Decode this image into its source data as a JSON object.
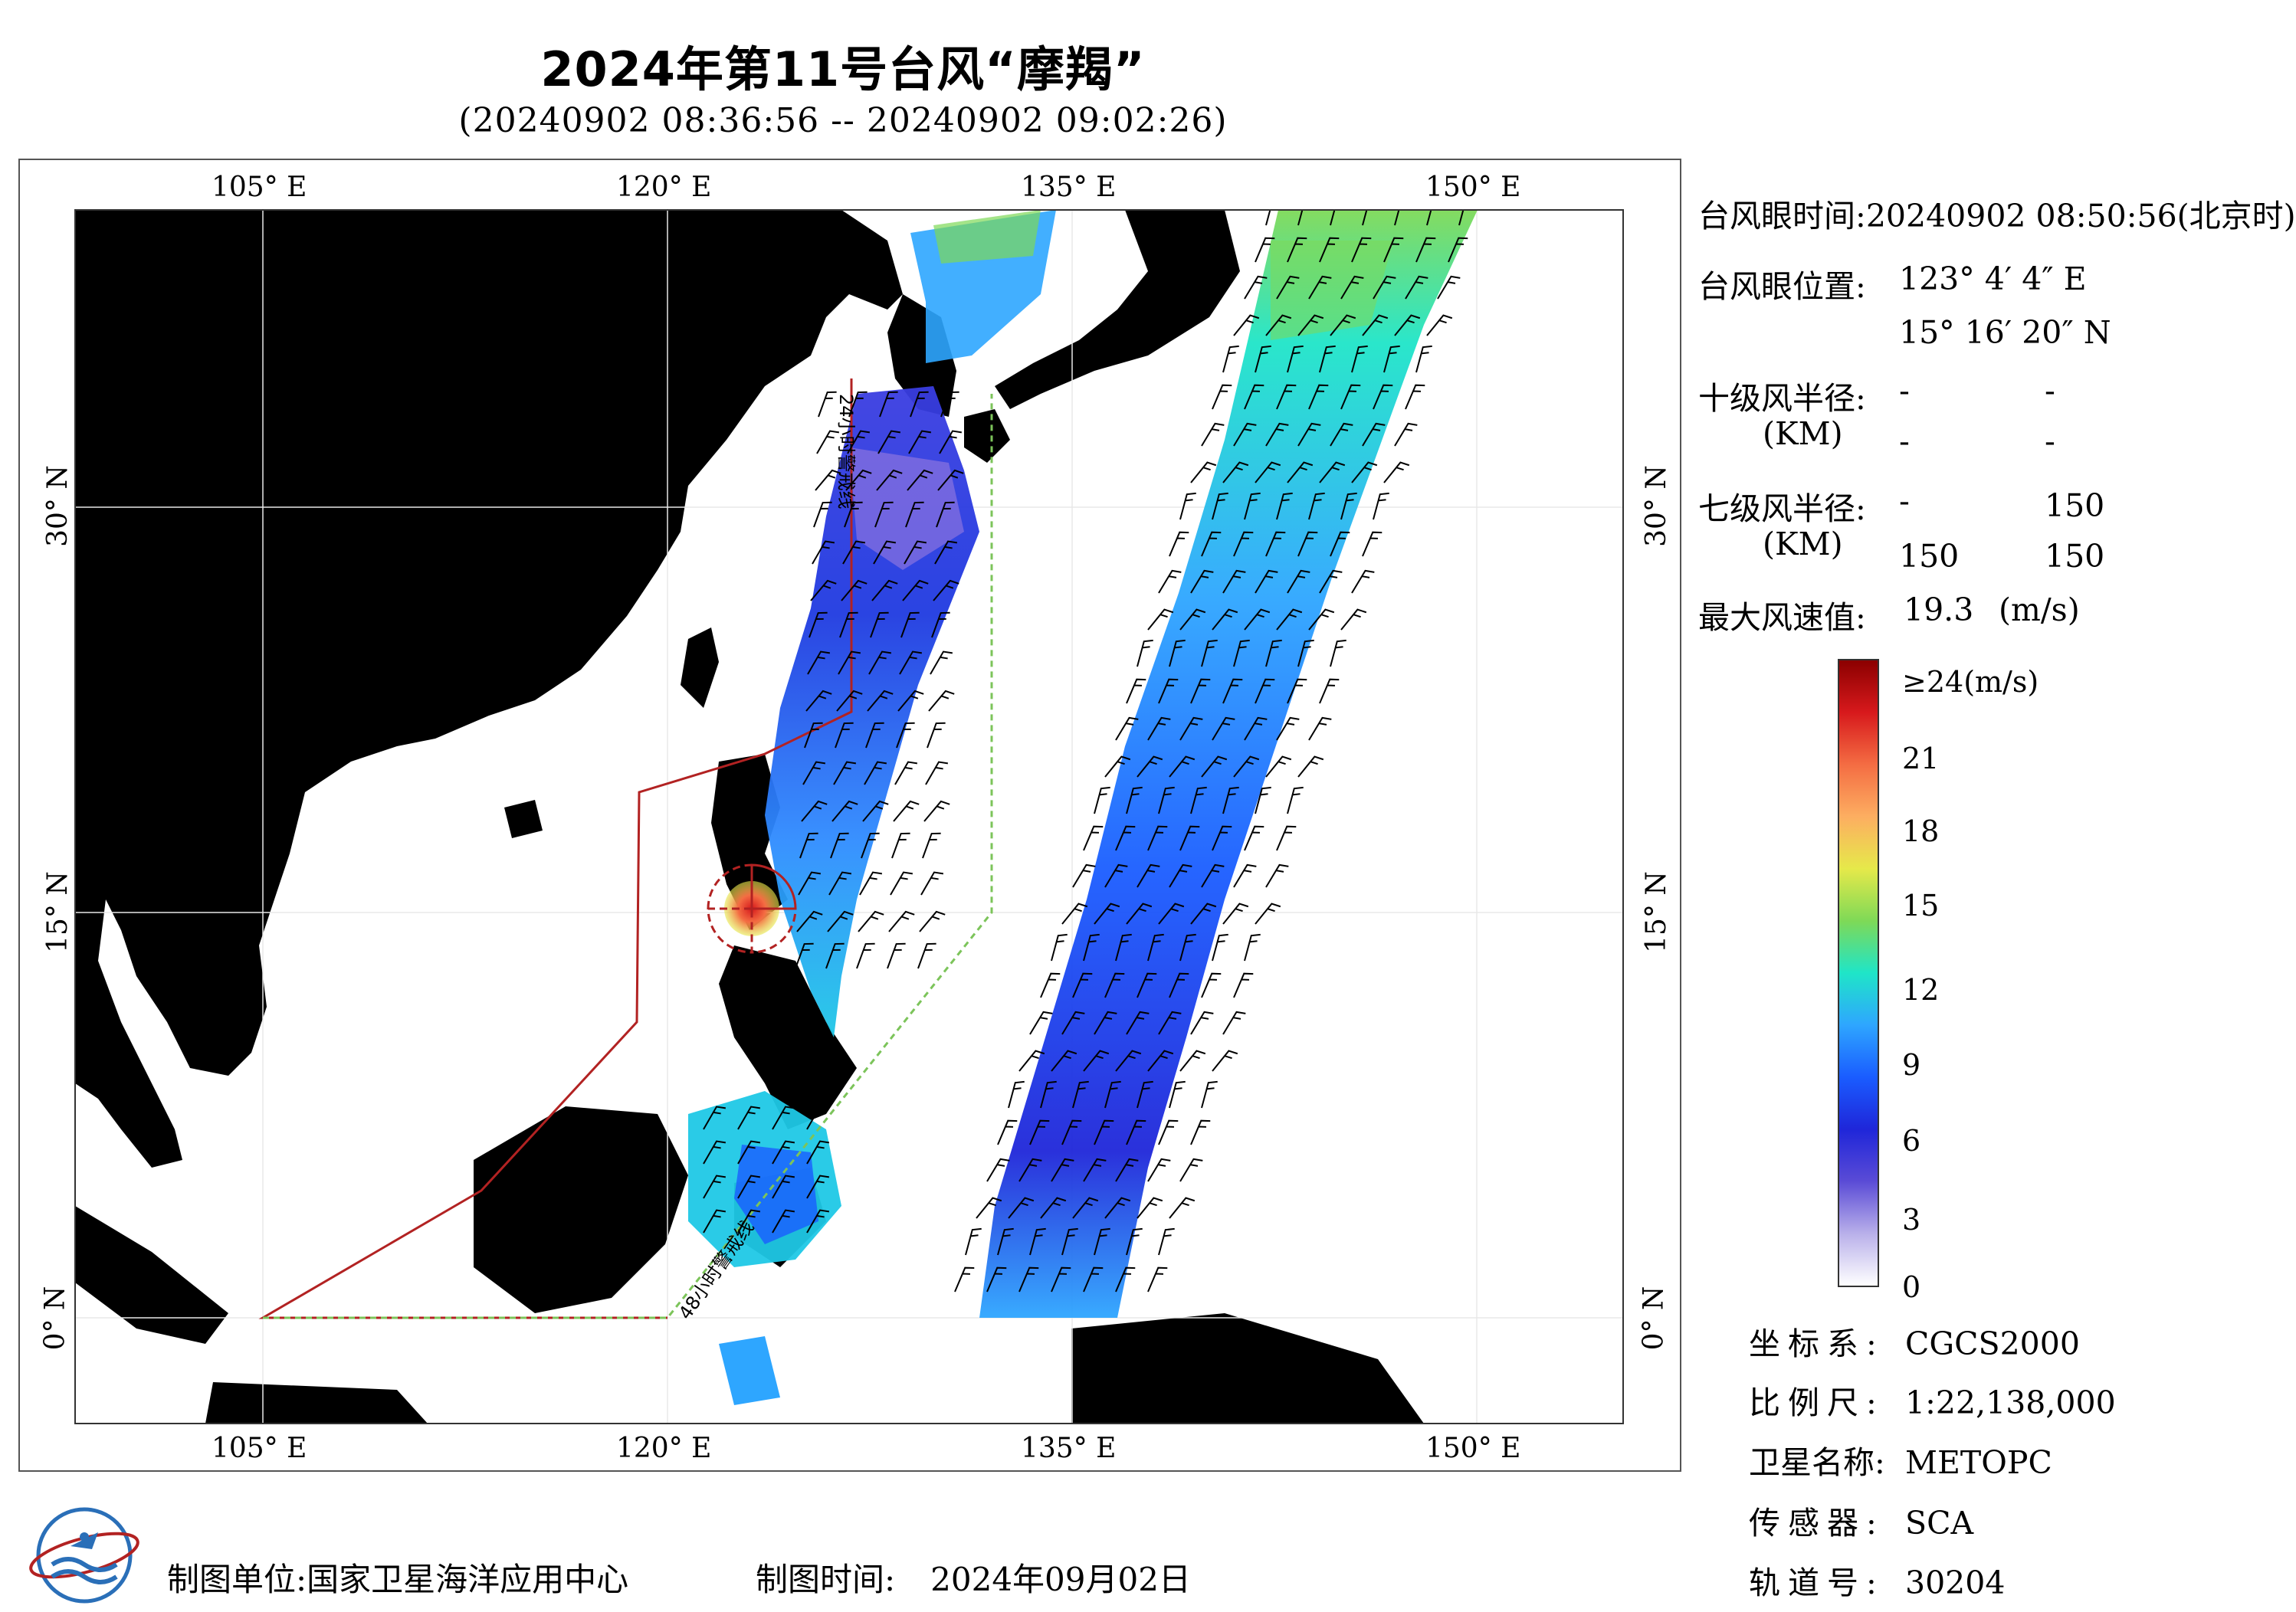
{
  "header": {
    "title": "2024年第11号台风“摩羯”",
    "subtitle": "(20240902 08:36:56 -- 20240902 09:02:26)"
  },
  "map": {
    "lon_labels": [
      "105° E",
      "120° E",
      "135° E",
      "150° E"
    ],
    "lat_labels": [
      "30° N",
      "15° N",
      "0° N"
    ],
    "track_labels": [
      "24小时警戒线",
      "48小时警戒线"
    ],
    "colors": {
      "land": "#d4d4d4",
      "sea": "#ffffff",
      "warning_24h": "#b22222",
      "warning_48h": "#7cc45a",
      "barb": "#000000"
    }
  },
  "typhoon_info": {
    "eye_time_label": "台风眼时间:",
    "eye_time_value": "20240902 08:50:56(北京时)",
    "eye_pos_label": "台风眼位置:",
    "eye_lon": "123° 4′ 4″ E",
    "eye_lat": "15° 16′ 20″ N",
    "r10_label": "十级风半径:",
    "r10_unit": "(KM)",
    "r10_values": [
      "-",
      "-",
      "-",
      "-"
    ],
    "r7_label": "七级风半径:",
    "r7_unit": "(KM)",
    "r7_values": [
      "-",
      "150",
      "150",
      "150"
    ],
    "max_wind_label": "最大风速值:",
    "max_wind_value": "19.3",
    "max_wind_unit": "(m/s)"
  },
  "colorbar": {
    "labels": [
      "≥24(m/s)",
      "21",
      "18",
      "15",
      "12",
      "9",
      "6",
      "3",
      "0"
    ],
    "stops": [
      "#8b0000",
      "#d7191c",
      "#f46d43",
      "#fdae61",
      "#e6e94a",
      "#7ed957",
      "#1fe5c8",
      "#2ea6ff",
      "#1a5cff",
      "#1f26d9",
      "#5a4bd6",
      "#b9b0ea",
      "#ffffff"
    ]
  },
  "meta": {
    "crs_label": "坐标系:",
    "crs_value": "CGCS2000",
    "scale_label": "比例尺:",
    "scale_value": "1:22,138,000",
    "sat_label": "卫星名称:",
    "sat_value": "METOPC",
    "sensor_label": "传感器:",
    "sensor_value": "SCA",
    "orbit_label": "轨道号:",
    "orbit_value": "30204"
  },
  "footer": {
    "unit_label": "制图单位:",
    "unit_value": "国家卫星海洋应用中心",
    "time_label": "制图时间:",
    "time_value": "2024年09月02日"
  }
}
